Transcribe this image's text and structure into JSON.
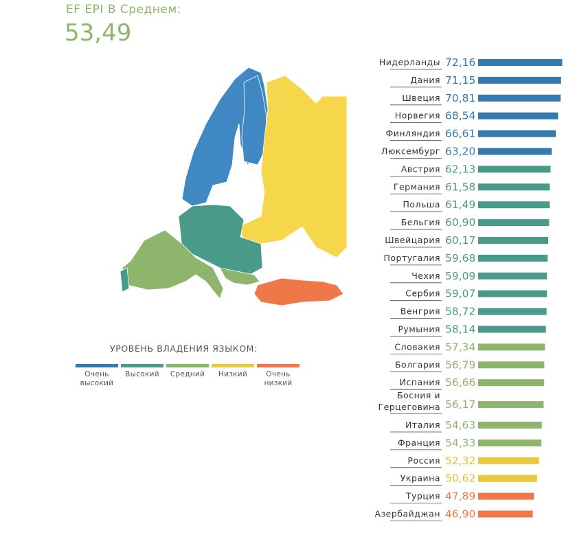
{
  "header": {
    "label": "EF EPI В Среднем:",
    "value": "53,49"
  },
  "legend": {
    "title": "УРОВЕНЬ ВЛАДЕНИЯ ЯЗЫКОМ:",
    "items": [
      {
        "label": "Очень высокий",
        "color": "#3579ad"
      },
      {
        "label": "Высокий",
        "color": "#4a9a8a"
      },
      {
        "label": "Средний",
        "color": "#8db56b"
      },
      {
        "label": "Низкий",
        "color": "#e8c83f"
      },
      {
        "label": "Очень низкий",
        "color": "#f07848"
      }
    ]
  },
  "chart_data": {
    "type": "bar",
    "orientation": "horizontal",
    "categories": [
      "Нидерланды",
      "Дания",
      "Швеция",
      "Норвегия",
      "Финляндия",
      "Люксембург",
      "Австрия",
      "Германия",
      "Польша",
      "Бельгия",
      "Швейцария",
      "Португалия",
      "Чехия",
      "Сербия",
      "Венгрия",
      "Румыния",
      "Словакия",
      "Болгария",
      "Испания",
      "Босния и Герцеговина",
      "Италия",
      "Франция",
      "Россия",
      "Украина",
      "Турция",
      "Азербайджан"
    ],
    "values": [
      72.16,
      71.15,
      70.81,
      68.54,
      66.61,
      63.2,
      62.13,
      61.58,
      61.49,
      60.9,
      60.17,
      59.68,
      59.09,
      59.07,
      58.72,
      58.14,
      57.34,
      56.79,
      56.66,
      56.17,
      54.63,
      54.33,
      52.32,
      50.62,
      47.89,
      46.9
    ],
    "value_labels": [
      "72,16",
      "71,15",
      "70,81",
      "68,54",
      "66,61",
      "63,20",
      "62,13",
      "61,58",
      "61,49",
      "60,90",
      "60,17",
      "59,68",
      "59,09",
      "59,07",
      "58,72",
      "58,14",
      "57,34",
      "56,79",
      "56,66",
      "56,17",
      "54,63",
      "54,33",
      "52,32",
      "50,62",
      "47,89",
      "46,90"
    ],
    "levels": [
      0,
      0,
      0,
      0,
      0,
      0,
      1,
      1,
      1,
      1,
      1,
      1,
      1,
      1,
      1,
      1,
      2,
      2,
      2,
      2,
      2,
      2,
      3,
      3,
      4,
      4
    ]
  }
}
